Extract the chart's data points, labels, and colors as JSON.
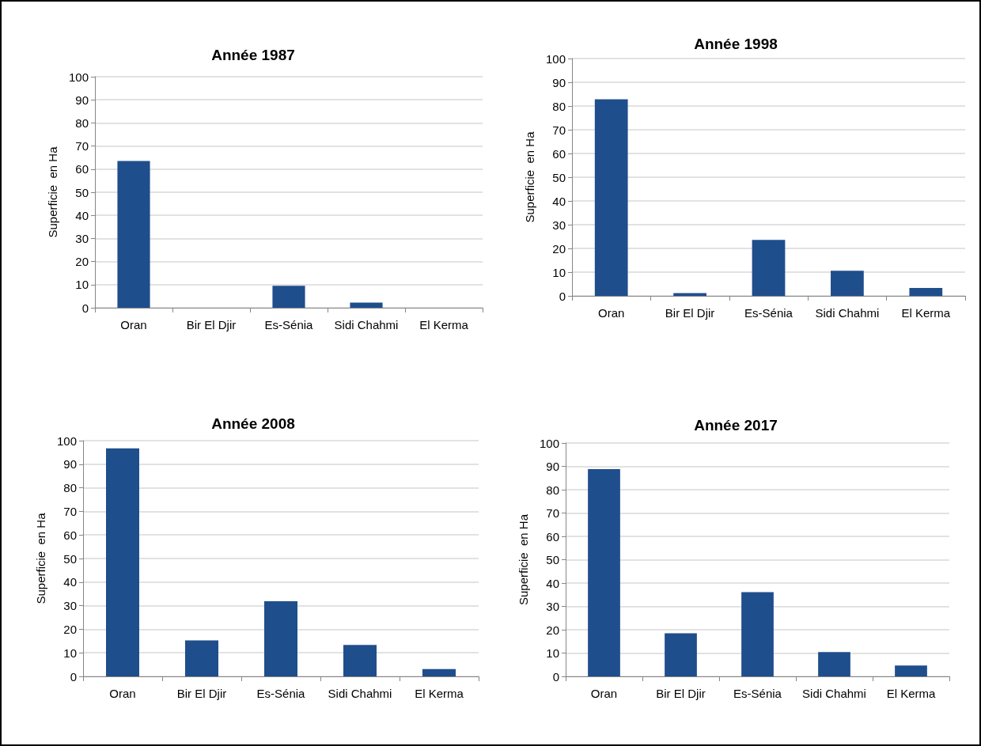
{
  "chart_data": [
    {
      "type": "bar",
      "title": "Année 1987",
      "ylabel": "Superficie  en Ha",
      "categories": [
        "Oran",
        "Bir El Djir",
        "Es-Sénia",
        "Sidi Chahmi",
        "El Kerma"
      ],
      "values": [
        63.5,
        0,
        9.5,
        2.2,
        0
      ],
      "color": "#1f4e8c",
      "ylim": [
        0,
        100
      ],
      "yticks": [
        0,
        10,
        20,
        30,
        40,
        50,
        60,
        70,
        80,
        90,
        100
      ],
      "grid": "y"
    },
    {
      "type": "bar",
      "title": "Année 1998",
      "ylabel": "Superficie  en Ha",
      "categories": [
        "Oran",
        "Bir El Djir",
        "Es-Sénia",
        "Sidi Chahmi",
        "El Kerma"
      ],
      "values": [
        82.8,
        1.2,
        23.6,
        10.6,
        3.3
      ],
      "color": "#1f4e8c",
      "ylim": [
        0,
        100
      ],
      "yticks": [
        0,
        10,
        20,
        30,
        40,
        50,
        60,
        70,
        80,
        90,
        100
      ],
      "grid": "y"
    },
    {
      "type": "bar",
      "title": "Année 2008",
      "ylabel": "Superficie  en Ha",
      "categories": [
        "Oran",
        "Bir El Djir",
        "Es-Sénia",
        "Sidi Chahmi",
        "El Kerma"
      ],
      "values": [
        96.7,
        15.3,
        31.9,
        13.3,
        3.1
      ],
      "color": "#1f4e8c",
      "ylim": [
        0,
        100
      ],
      "yticks": [
        0,
        10,
        20,
        30,
        40,
        50,
        60,
        70,
        80,
        90,
        100
      ],
      "grid": "y"
    },
    {
      "type": "bar",
      "title": "Année 2017",
      "ylabel": "Superficie  en Ha",
      "categories": [
        "Oran",
        "Bir El Djir",
        "Es-Sénia",
        "Sidi Chahmi",
        "El Kerma"
      ],
      "values": [
        88.8,
        18.5,
        36.1,
        10.4,
        4.7
      ],
      "color": "#1f4e8c",
      "ylim": [
        0,
        100
      ],
      "yticks": [
        0,
        10,
        20,
        30,
        40,
        50,
        60,
        70,
        80,
        90,
        100
      ],
      "grid": "y"
    }
  ]
}
